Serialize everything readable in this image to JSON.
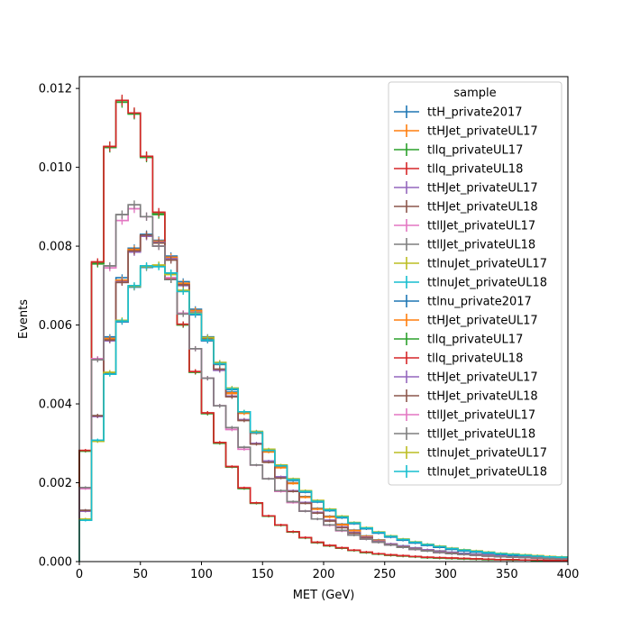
{
  "chart_data": {
    "type": "line",
    "style": "step histogram with error bars",
    "title": "",
    "xlabel": "MET (GeV)",
    "ylabel": "Events",
    "xlim": [
      0,
      400
    ],
    "ylim": [
      0,
      0.0123
    ],
    "x_ticks": [
      0,
      50,
      100,
      150,
      200,
      250,
      300,
      350,
      400
    ],
    "y_ticks": [
      0.0,
      0.002,
      0.004,
      0.006,
      0.008,
      0.01,
      0.012
    ],
    "x_tick_labels": [
      "0",
      "50",
      "100",
      "150",
      "200",
      "250",
      "300",
      "350",
      "400"
    ],
    "y_tick_labels": [
      "0.000",
      "0.002",
      "0.004",
      "0.006",
      "0.008",
      "0.010",
      "0.012"
    ],
    "grid": false,
    "legend_title": "sample",
    "legend_position": "top-right",
    "bin_edges": [
      0,
      10,
      20,
      30,
      40,
      50,
      60,
      70,
      80,
      90,
      100,
      110,
      120,
      130,
      140,
      150,
      160,
      170,
      180,
      190,
      200,
      210,
      220,
      230,
      240,
      250,
      260,
      270,
      280,
      290,
      300,
      310,
      320,
      330,
      340,
      350,
      360,
      370,
      380,
      390,
      400
    ],
    "series": [
      {
        "name": "ttH_private2017",
        "color": "#1f77b4",
        "values": [
          0.0013,
          0.0037,
          0.0057,
          0.0072,
          0.00795,
          0.0083,
          0.00815,
          0.00775,
          0.0071,
          0.0064,
          0.0057,
          0.00505,
          0.0043,
          0.0038,
          0.0033,
          0.0028,
          0.0024,
          0.002,
          0.00165,
          0.00135,
          0.00115,
          0.00095,
          0.0008,
          0.00065,
          0.00055,
          0.00045,
          0.0004,
          0.00035,
          0.0003,
          0.00027,
          0.00024,
          0.00021,
          0.00019,
          0.00017,
          0.00015,
          0.00013,
          0.00012,
          0.00011,
          0.0001,
          9e-05
        ]
      },
      {
        "name": "ttHJet_privateUL17",
        "color": "#ff7f0e",
        "values": [
          0.00128,
          0.00368,
          0.00565,
          0.00712,
          0.0079,
          0.00826,
          0.00812,
          0.0077,
          0.00705,
          0.00636,
          0.00566,
          0.005,
          0.00426,
          0.00376,
          0.00326,
          0.00278,
          0.00238,
          0.00198,
          0.00163,
          0.00133,
          0.00113,
          0.00093,
          0.00078,
          0.00064,
          0.00054,
          0.00044,
          0.00039,
          0.00034,
          0.00029,
          0.00026,
          0.00023,
          0.0002,
          0.00018,
          0.00016,
          0.00014,
          0.00012,
          0.00011,
          0.0001,
          9e-05,
          8e-05
        ]
      },
      {
        "name": "tllq_privateUL17",
        "color": "#2ca02c",
        "values": [
          0.0028,
          0.00755,
          0.0105,
          0.01165,
          0.01135,
          0.01025,
          0.0088,
          0.00715,
          0.006,
          0.0048,
          0.00375,
          0.003,
          0.0024,
          0.00185,
          0.00148,
          0.00115,
          0.00092,
          0.00075,
          0.0006,
          0.00048,
          0.0004,
          0.00034,
          0.00028,
          0.00023,
          0.00019,
          0.00016,
          0.00014,
          0.00012,
          0.0001,
          9e-05,
          8e-05,
          7e-05,
          6e-05,
          5e-05,
          5e-05,
          4e-05,
          4e-05,
          3e-05,
          3e-05,
          3e-05
        ]
      },
      {
        "name": "tllq_privateUL18",
        "color": "#d62728",
        "values": [
          0.00282,
          0.0076,
          0.01053,
          0.0117,
          0.01138,
          0.01028,
          0.00886,
          0.00718,
          0.00602,
          0.00482,
          0.00377,
          0.00302,
          0.00241,
          0.00187,
          0.00149,
          0.00116,
          0.00093,
          0.00076,
          0.00061,
          0.00049,
          0.00041,
          0.00035,
          0.00029,
          0.00024,
          0.0002,
          0.00017,
          0.00015,
          0.00013,
          0.00011,
          0.0001,
          9e-05,
          8e-05,
          7e-05,
          6e-05,
          5e-05,
          5e-05,
          4e-05,
          4e-05,
          3e-05,
          3e-05
        ]
      },
      {
        "name": "ttHJet_privateUL17",
        "color": "#9467bd",
        "values": [
          0.00128,
          0.00368,
          0.0056,
          0.0071,
          0.00785,
          0.00825,
          0.0081,
          0.00768,
          0.007,
          0.00632,
          0.00562,
          0.00485,
          0.0042,
          0.0036,
          0.003,
          0.00255,
          0.00215,
          0.0018,
          0.0015,
          0.00125,
          0.00105,
          0.00088,
          0.00074,
          0.00062,
          0.00052,
          0.00045,
          0.00039,
          0.00034,
          0.0003,
          0.00026,
          0.00023,
          0.0002,
          0.00018,
          0.00016,
          0.00014,
          0.00012,
          0.00011,
          0.0001,
          9e-05,
          8e-05
        ]
      },
      {
        "name": "ttHJet_privateUL18",
        "color": "#8c564b",
        "values": [
          0.0013,
          0.0037,
          0.00562,
          0.00708,
          0.00788,
          0.00828,
          0.00808,
          0.00765,
          0.00702,
          0.0063,
          0.00565,
          0.00488,
          0.00418,
          0.00358,
          0.00298,
          0.00252,
          0.00212,
          0.00178,
          0.00148,
          0.00123,
          0.00103,
          0.00086,
          0.00072,
          0.0006,
          0.0005,
          0.00043,
          0.00037,
          0.00032,
          0.00028,
          0.00024,
          0.00021,
          0.00018,
          0.00016,
          0.00014,
          0.00012,
          0.00011,
          0.0001,
          9e-05,
          8e-05,
          7e-05
        ]
      },
      {
        "name": "ttllJet_privateUL17",
        "color": "#e377c2",
        "values": [
          0.00185,
          0.00515,
          0.00745,
          0.00865,
          0.00895,
          0.00875,
          0.008,
          0.0072,
          0.0063,
          0.0054,
          0.00465,
          0.00395,
          0.00335,
          0.00285,
          0.00245,
          0.0021,
          0.00178,
          0.0015,
          0.00128,
          0.00108,
          0.00092,
          0.00078,
          0.00067,
          0.00057,
          0.00049,
          0.00042,
          0.00036,
          0.00031,
          0.00027,
          0.00023,
          0.0002,
          0.00018,
          0.00016,
          0.00014,
          0.00012,
          0.00011,
          0.0001,
          9e-05,
          8e-05,
          7e-05
        ]
      },
      {
        "name": "ttllJet_privateUL18",
        "color": "#7f7f7f",
        "values": [
          0.00188,
          0.00512,
          0.0075,
          0.0088,
          0.00905,
          0.00875,
          0.008,
          0.00715,
          0.00628,
          0.0054,
          0.00465,
          0.00395,
          0.0034,
          0.0029,
          0.00245,
          0.0021,
          0.0018,
          0.00152,
          0.00128,
          0.00108,
          0.00093,
          0.00079,
          0.00067,
          0.00057,
          0.00049,
          0.00042,
          0.00036,
          0.00031,
          0.00027,
          0.00023,
          0.0002,
          0.00018,
          0.00016,
          0.00014,
          0.00012,
          0.00011,
          0.0001,
          9e-05,
          8e-05,
          7e-05
        ]
      },
      {
        "name": "ttlnuJet_privateUL17",
        "color": "#bcbd22",
        "values": [
          0.00108,
          0.00305,
          0.0048,
          0.00612,
          0.00698,
          0.00748,
          0.00752,
          0.00728,
          0.00688,
          0.0063,
          0.00568,
          0.00505,
          0.0044,
          0.0038,
          0.0033,
          0.00285,
          0.00245,
          0.0021,
          0.0018,
          0.00155,
          0.00133,
          0.00115,
          0.00099,
          0.00086,
          0.00075,
          0.00065,
          0.00057,
          0.0005,
          0.00044,
          0.00039,
          0.00034,
          0.0003,
          0.00027,
          0.00024,
          0.00021,
          0.00019,
          0.00017,
          0.00015,
          0.00013,
          0.00012
        ]
      },
      {
        "name": "ttlnuJet_privateUL18",
        "color": "#17becf",
        "values": [
          0.00105,
          0.00308,
          0.00475,
          0.0061,
          0.007,
          0.0075,
          0.00748,
          0.00732,
          0.00685,
          0.00628,
          0.00562,
          0.00502,
          0.00438,
          0.0038,
          0.00328,
          0.00282,
          0.00243,
          0.00208,
          0.00178,
          0.00153,
          0.00131,
          0.00113,
          0.00098,
          0.00085,
          0.00074,
          0.00064,
          0.00056,
          0.00049,
          0.00043,
          0.00038,
          0.00033,
          0.00029,
          0.00026,
          0.00023,
          0.0002,
          0.00018,
          0.00016,
          0.00014,
          0.00012,
          0.00011
        ]
      },
      {
        "name": "ttlnu_private2017",
        "color": "#1f77b4",
        "values": [
          0.00106,
          0.00306,
          0.00478,
          0.00608,
          0.00696,
          0.00746,
          0.0075,
          0.0073,
          0.00686,
          0.00626,
          0.0056,
          0.005,
          0.00436,
          0.00378,
          0.00326,
          0.0028,
          0.00241,
          0.00206,
          0.00176,
          0.00151,
          0.00129,
          0.00111,
          0.00096,
          0.00083,
          0.00072,
          0.00062,
          0.00054,
          0.00047,
          0.00041,
          0.00036,
          0.00031,
          0.00027,
          0.00024,
          0.00021,
          0.00018,
          0.00016,
          0.00014,
          0.00012,
          0.00011,
          0.0001
        ]
      },
      {
        "name": "ttHJet_privateUL17",
        "color": "#ff7f0e",
        "values": [
          0.00129,
          0.00369,
          0.00566,
          0.00714,
          0.00792,
          0.00827,
          0.00813,
          0.00772,
          0.00706,
          0.00637,
          0.00567,
          0.00502,
          0.00428,
          0.00377,
          0.00327,
          0.00279,
          0.00239,
          0.00199,
          0.00164,
          0.00134,
          0.00114,
          0.00094,
          0.00079,
          0.00064,
          0.00054,
          0.00044,
          0.00039,
          0.00034,
          0.00029,
          0.00026,
          0.00023,
          0.0002,
          0.00018,
          0.00016,
          0.00014,
          0.00012,
          0.00011,
          0.0001,
          9e-05,
          8e-05
        ]
      },
      {
        "name": "tllq_privateUL17",
        "color": "#2ca02c",
        "values": [
          0.00281,
          0.00756,
          0.01051,
          0.01166,
          0.01136,
          0.01026,
          0.00882,
          0.00716,
          0.00601,
          0.00481,
          0.00376,
          0.00301,
          0.0024,
          0.00186,
          0.00148,
          0.00115,
          0.00092,
          0.00075,
          0.0006,
          0.00048,
          0.0004,
          0.00034,
          0.00028,
          0.00023,
          0.00019,
          0.00016,
          0.00014,
          0.00012,
          0.0001,
          9e-05,
          8e-05,
          7e-05,
          6e-05,
          5e-05,
          5e-05,
          4e-05,
          4e-05,
          3e-05,
          3e-05,
          3e-05
        ]
      },
      {
        "name": "tllq_privateUL18",
        "color": "#d62728",
        "values": [
          0.00282,
          0.0076,
          0.01053,
          0.0117,
          0.01138,
          0.01028,
          0.00886,
          0.00718,
          0.00602,
          0.00482,
          0.00377,
          0.00302,
          0.00241,
          0.00187,
          0.00149,
          0.00116,
          0.00093,
          0.00076,
          0.00061,
          0.00049,
          0.00041,
          0.00035,
          0.00029,
          0.00024,
          0.0002,
          0.00017,
          0.00015,
          0.00013,
          0.00011,
          0.0001,
          9e-05,
          8e-05,
          7e-05,
          6e-05,
          5e-05,
          5e-05,
          4e-05,
          4e-05,
          3e-05,
          3e-05
        ]
      },
      {
        "name": "ttHJet_privateUL17",
        "color": "#9467bd",
        "values": [
          0.00128,
          0.00368,
          0.0056,
          0.0071,
          0.00785,
          0.00825,
          0.0081,
          0.00768,
          0.007,
          0.00632,
          0.00562,
          0.00485,
          0.0042,
          0.0036,
          0.003,
          0.00255,
          0.00215,
          0.0018,
          0.0015,
          0.00125,
          0.00105,
          0.00088,
          0.00074,
          0.00062,
          0.00052,
          0.00045,
          0.00039,
          0.00034,
          0.0003,
          0.00026,
          0.00023,
          0.0002,
          0.00018,
          0.00016,
          0.00014,
          0.00012,
          0.00011,
          0.0001,
          9e-05,
          8e-05
        ]
      },
      {
        "name": "ttHJet_privateUL18",
        "color": "#8c564b",
        "values": [
          0.0013,
          0.0037,
          0.00562,
          0.00708,
          0.00788,
          0.00828,
          0.00808,
          0.00765,
          0.00702,
          0.0063,
          0.00565,
          0.00488,
          0.00418,
          0.00358,
          0.00298,
          0.00252,
          0.00212,
          0.00178,
          0.00148,
          0.00123,
          0.00103,
          0.00086,
          0.00072,
          0.0006,
          0.0005,
          0.00043,
          0.00037,
          0.00032,
          0.00028,
          0.00024,
          0.00021,
          0.00018,
          0.00016,
          0.00014,
          0.00012,
          0.00011,
          0.0001,
          9e-05,
          8e-05,
          7e-05
        ]
      },
      {
        "name": "ttllJet_privateUL17",
        "color": "#e377c2",
        "values": [
          0.00185,
          0.00515,
          0.00745,
          0.00865,
          0.00895,
          0.00875,
          0.008,
          0.0072,
          0.0063,
          0.0054,
          0.00465,
          0.00395,
          0.00335,
          0.00285,
          0.00245,
          0.0021,
          0.00178,
          0.0015,
          0.00128,
          0.00108,
          0.00092,
          0.00078,
          0.00067,
          0.00057,
          0.00049,
          0.00042,
          0.00036,
          0.00031,
          0.00027,
          0.00023,
          0.0002,
          0.00018,
          0.00016,
          0.00014,
          0.00012,
          0.00011,
          0.0001,
          9e-05,
          8e-05,
          7e-05
        ]
      },
      {
        "name": "ttllJet_privateUL18",
        "color": "#7f7f7f",
        "values": [
          0.00188,
          0.00512,
          0.0075,
          0.0088,
          0.00905,
          0.00875,
          0.008,
          0.00715,
          0.00628,
          0.0054,
          0.00465,
          0.00395,
          0.0034,
          0.0029,
          0.00245,
          0.0021,
          0.0018,
          0.00152,
          0.00128,
          0.00108,
          0.00093,
          0.00079,
          0.00067,
          0.00057,
          0.00049,
          0.00042,
          0.00036,
          0.00031,
          0.00027,
          0.00023,
          0.0002,
          0.00018,
          0.00016,
          0.00014,
          0.00012,
          0.00011,
          0.0001,
          9e-05,
          8e-05,
          7e-05
        ]
      },
      {
        "name": "ttlnuJet_privateUL17",
        "color": "#bcbd22",
        "values": [
          0.00108,
          0.00305,
          0.0048,
          0.00612,
          0.00698,
          0.00748,
          0.00752,
          0.00728,
          0.00688,
          0.0063,
          0.00568,
          0.00505,
          0.0044,
          0.0038,
          0.0033,
          0.00285,
          0.00245,
          0.0021,
          0.0018,
          0.00155,
          0.00133,
          0.00115,
          0.00099,
          0.00086,
          0.00075,
          0.00065,
          0.00057,
          0.0005,
          0.00044,
          0.00039,
          0.00034,
          0.0003,
          0.00027,
          0.00024,
          0.00021,
          0.00019,
          0.00017,
          0.00015,
          0.00013,
          0.00012
        ]
      },
      {
        "name": "ttlnuJet_privateUL18",
        "color": "#17becf",
        "values": [
          0.00105,
          0.00308,
          0.00475,
          0.0061,
          0.007,
          0.0075,
          0.00748,
          0.00732,
          0.00685,
          0.00628,
          0.00562,
          0.00502,
          0.00438,
          0.0038,
          0.00328,
          0.00282,
          0.00243,
          0.00208,
          0.00178,
          0.00153,
          0.00131,
          0.00113,
          0.00098,
          0.00085,
          0.00074,
          0.00064,
          0.00056,
          0.00049,
          0.00043,
          0.00038,
          0.00033,
          0.00029,
          0.00026,
          0.00023,
          0.0002,
          0.00018,
          0.00016,
          0.00014,
          0.00012,
          0.00011
        ]
      }
    ]
  }
}
